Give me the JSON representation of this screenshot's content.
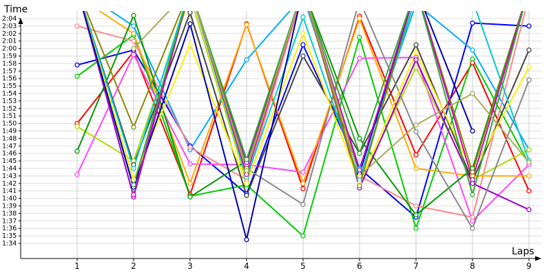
{
  "chart_data": {
    "type": "line",
    "title": "",
    "xlabel": "Laps",
    "ylabel": "Time",
    "categories": [
      "1",
      "2",
      "3",
      "4",
      "5",
      "6",
      "7",
      "8",
      "9"
    ],
    "y_tick_labels": [
      "1:34",
      "1:35",
      "1:36",
      "1:37",
      "1:38",
      "1:39",
      "1:40",
      "1:41",
      "1:42",
      "1:43",
      "1:44",
      "1:45",
      "1:46",
      "1:47",
      "1:48",
      "1:49",
      "1:50",
      "1:51",
      "1:52",
      "1:53",
      "1:54",
      "1:55",
      "1:56",
      "1:57",
      "1:58",
      "1:59",
      "2:00",
      "2:01",
      "2:02",
      "2:03",
      "2:04"
    ],
    "y_unit": "seconds",
    "ylim": [
      92.5,
      126
    ],
    "grid": true,
    "legend": "none",
    "series": [
      {
        "color": "#ff0000",
        "values": [
          110.0,
          119.6,
          100.5,
          123.3,
          101.3,
          124.3,
          105.8,
          118.1,
          101.0
        ]
      },
      {
        "color": "#0000ff",
        "values": [
          117.8,
          119.8,
          107.0,
          100.6,
          120.5,
          104.0,
          97.5,
          123.4,
          123.0
        ]
      },
      {
        "color": "#00cc00",
        "values": [
          116.3,
          121.8,
          100.3,
          101.8,
          95.0,
          121.5,
          96.0,
          118.6,
          104.6
        ]
      },
      {
        "color": "#ff44ff",
        "values": [
          103.2,
          119.2,
          104.6,
          104.5,
          103.5,
          118.7,
          118.8,
          97.0,
          104.5
        ]
      },
      {
        "color": "#00aaff",
        "values": [
          128.0,
          123.0,
          106.5,
          118.5,
          127.0,
          104.0,
          126.0,
          119.8,
          106.5
        ]
      },
      {
        "color": "#aadd00",
        "values": [
          109.6,
          105.0,
          127.0,
          102.3,
          128.0,
          102.0,
          117.5,
          102.5,
          106.5
        ]
      },
      {
        "color": "#ff8888",
        "values": [
          123.0,
          121.0,
          106.8,
          102.5,
          127.5,
          103.0,
          99.0,
          97.5,
          127.0
        ]
      },
      {
        "color": "#ffaa00",
        "values": [
          127.0,
          122.0,
          102.0,
          123.2,
          102.0,
          124.0,
          104.0,
          103.0,
          103.0
        ]
      },
      {
        "color": "#444444",
        "values": [
          128.0,
          104.5,
          124.8,
          100.4,
          119.0,
          106.0,
          120.5,
          102.3,
          119.8
        ]
      },
      {
        "color": "#009900",
        "values": [
          106.3,
          124.4,
          100.2,
          105.0,
          128.0,
          108.0,
          97.8,
          104.0,
          128.0
        ]
      },
      {
        "color": "#00cccc",
        "values": [
          128.0,
          104.0,
          128.0,
          102.8,
          124.2,
          102.5,
          127.0,
          126.5,
          105.0
        ]
      },
      {
        "color": "#9900cc",
        "values": [
          128.0,
          100.2,
          128.0,
          104.8,
          128.0,
          101.4,
          118.5,
          102.0,
          98.5
        ]
      },
      {
        "color": "#888888",
        "values": [
          128.0,
          101.3,
          128.0,
          104.0,
          99.2,
          126.5,
          108.9,
          96.0,
          115.8
        ]
      },
      {
        "color": "#ffee00",
        "values": [
          128.0,
          102.5,
          120.5,
          102.0,
          122.0,
          102.0,
          119.5,
          103.5,
          117.5
        ]
      },
      {
        "color": "#888800",
        "values": [
          128.0,
          109.5,
          128.0,
          104.0,
          128.0,
          101.7,
          128.0,
          103.5,
          128.0
        ]
      },
      {
        "color": "#0000aa",
        "values": [
          128.0,
          101.5,
          123.3,
          94.5,
          128.0,
          103.3,
          128.0,
          109.0,
          null
        ]
      },
      {
        "color": "#cc00cc",
        "values": [
          null,
          100.5,
          128.0,
          103.2,
          128.0,
          103.8,
          128.0,
          102.5,
          128.0
        ]
      },
      {
        "color": "#33aa33",
        "values": [
          null,
          101.8,
          128.0,
          105.2,
          128.0,
          106.0,
          128.0,
          100.5,
          128.0
        ]
      },
      {
        "color": "#aaaa55",
        "values": [
          null,
          120.0,
          128.0,
          103.7,
          128.0,
          103.0,
          109.8,
          114.0,
          104.8
        ]
      }
    ]
  }
}
